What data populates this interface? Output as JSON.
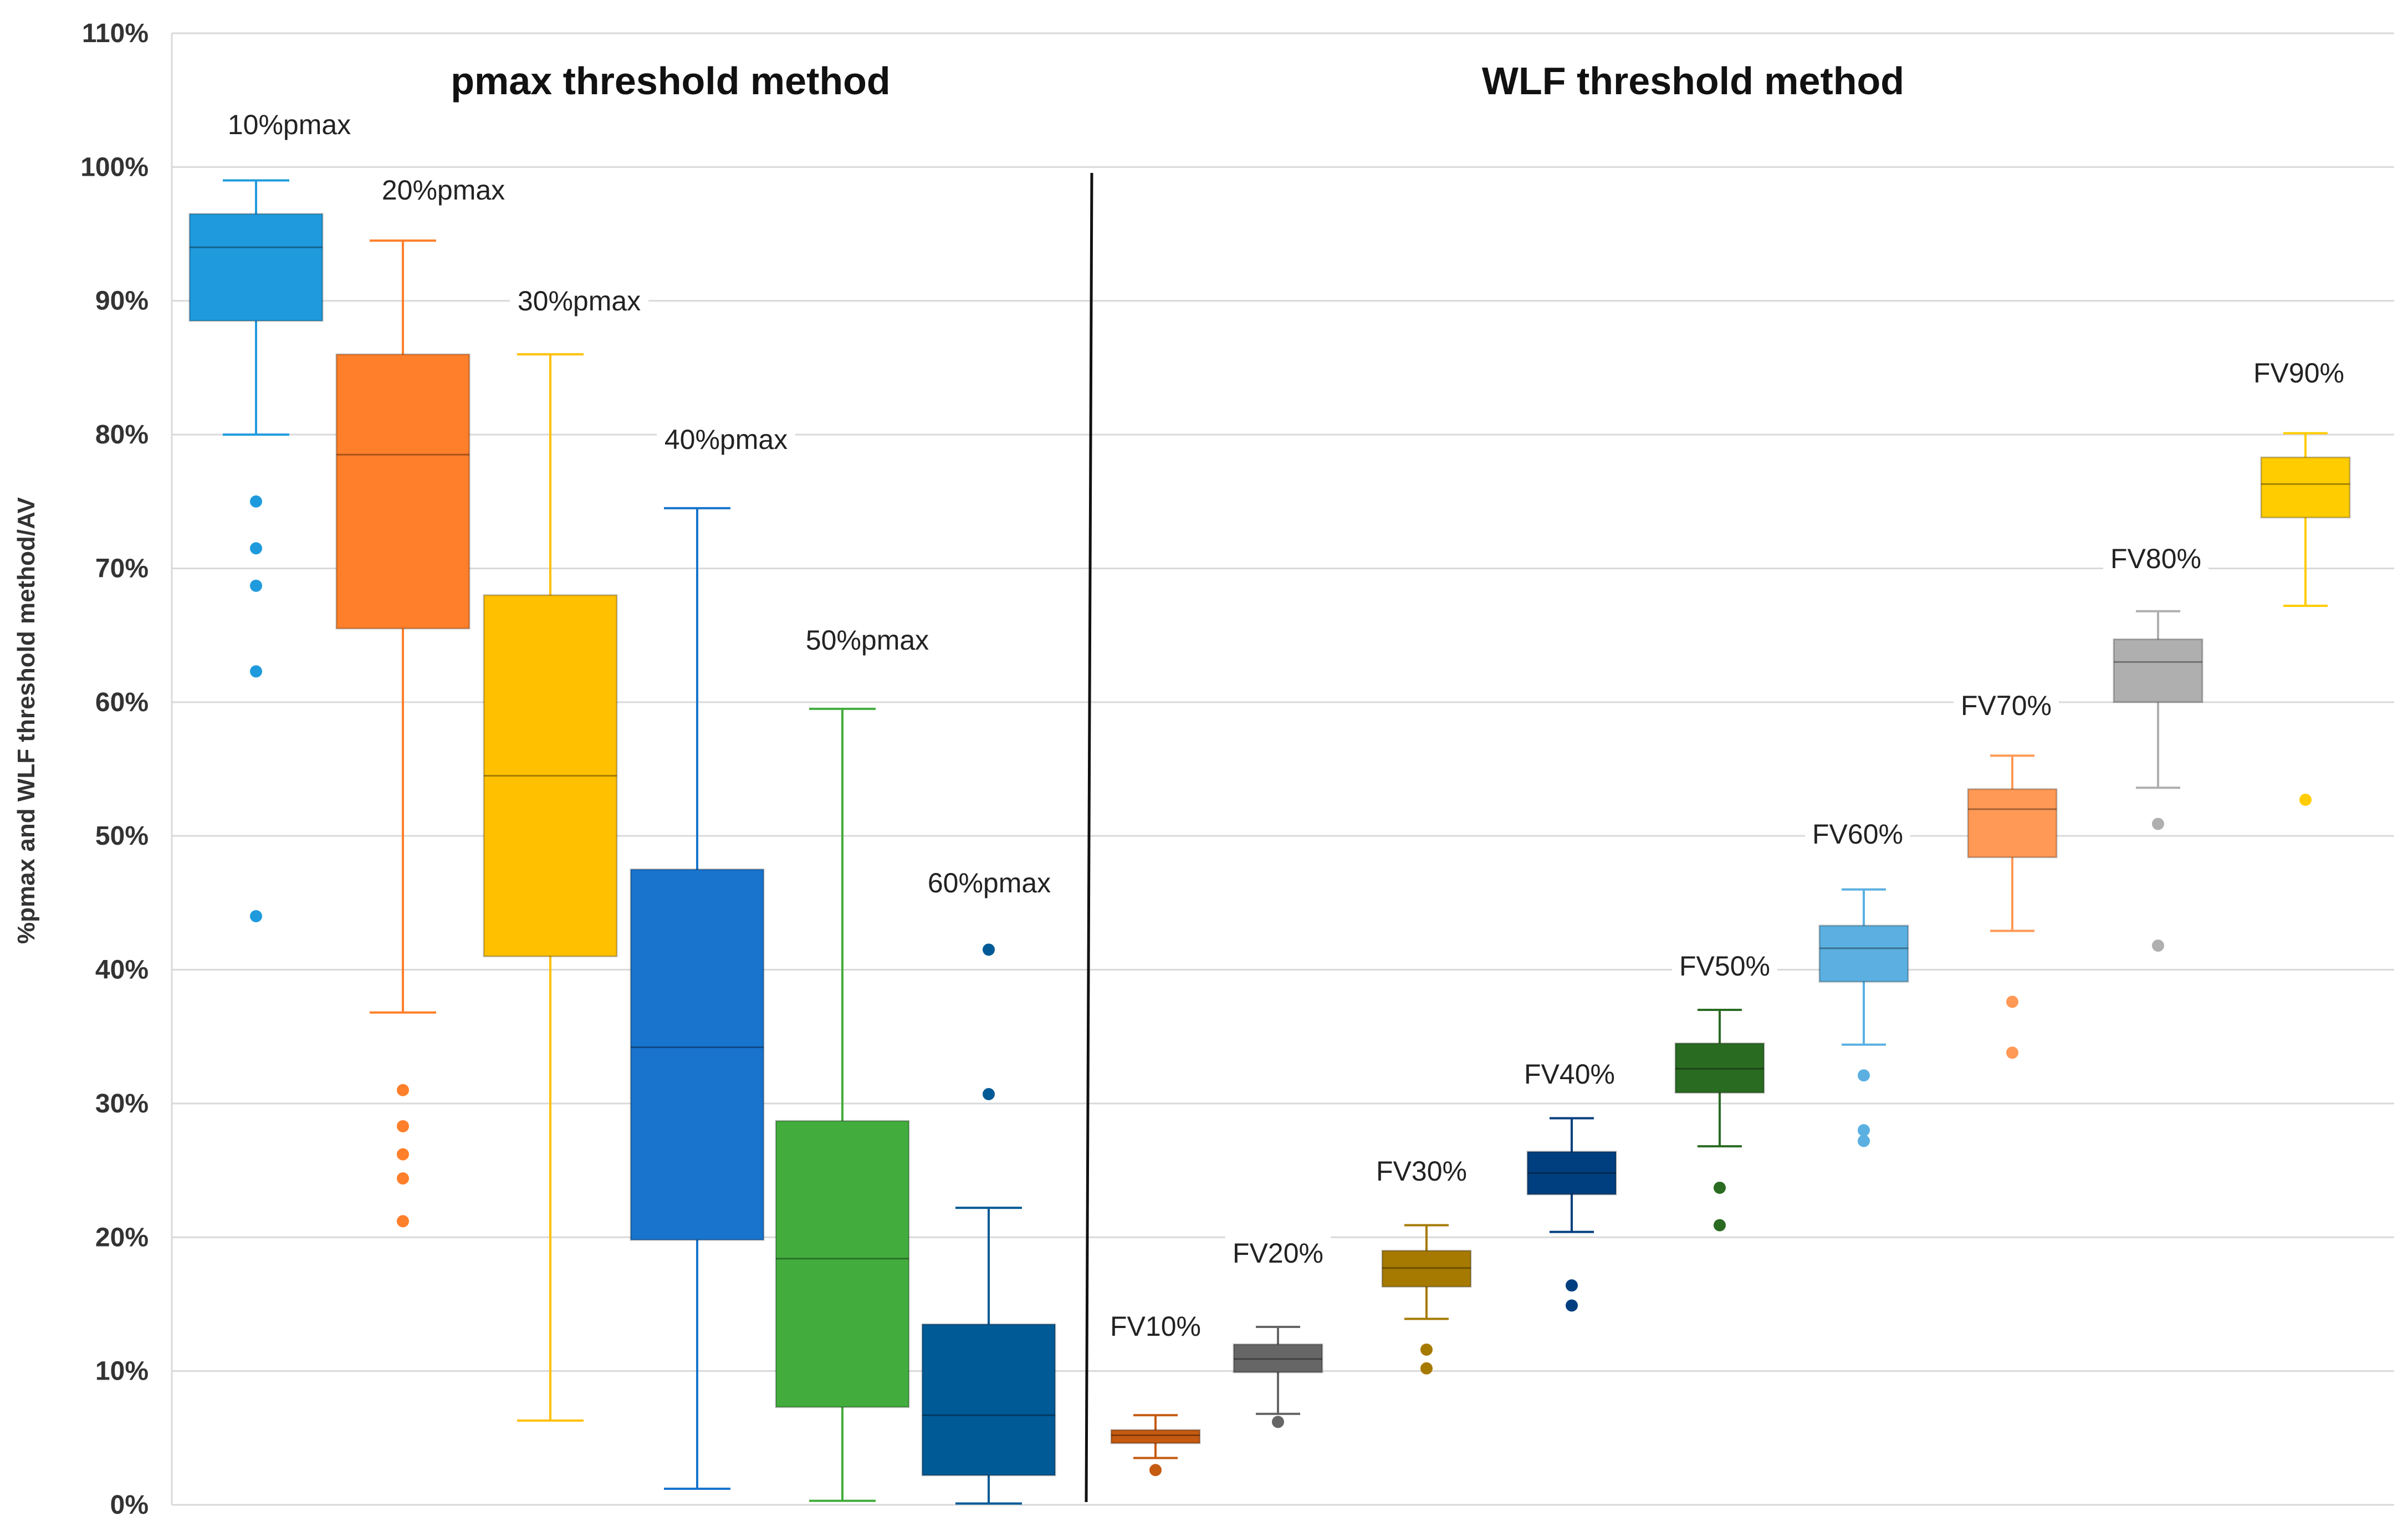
{
  "chart_data": {
    "type": "box",
    "ylabel": "%pmax and WLF threshold method/AV",
    "ylim": [
      0,
      110
    ],
    "yticks": [
      "0%",
      "10%",
      "20%",
      "30%",
      "40%",
      "50%",
      "60%",
      "70%",
      "80%",
      "90%",
      "100%",
      "110%"
    ],
    "grid": true,
    "sections": [
      {
        "title": "pmax threshold method"
      },
      {
        "title": "WLF threshold method"
      }
    ],
    "series": [
      {
        "name": "10%pmax",
        "color": "#1F9BDD",
        "min": 80,
        "q1": 88.5,
        "median": 94,
        "q3": 96.5,
        "max": 99,
        "outliers": [
          75,
          71.5,
          68.7,
          62.3,
          44
        ]
      },
      {
        "name": "20%pmax",
        "color": "#FF7F2A",
        "min": 36.8,
        "q1": 65.5,
        "median": 78.5,
        "q3": 86,
        "max": 94.5,
        "outliers": [
          31,
          28.3,
          26.2,
          24.4,
          21.2
        ]
      },
      {
        "name": "30%pmax",
        "color": "#FFC000",
        "min": 6.3,
        "q1": 41,
        "median": 54.5,
        "q3": 68,
        "max": 86,
        "outliers": []
      },
      {
        "name": "40%pmax",
        "color": "#1874CD",
        "min": 1.2,
        "q1": 19.8,
        "median": 34.2,
        "q3": 47.5,
        "max": 74.5,
        "outliers": []
      },
      {
        "name": "50%pmax",
        "color": "#42AD3D",
        "min": 0.3,
        "q1": 7.3,
        "median": 18.4,
        "q3": 28.7,
        "max": 59.5,
        "outliers": []
      },
      {
        "name": "60%pmax",
        "color": "#005A96",
        "min": 0.1,
        "q1": 2.2,
        "median": 6.7,
        "q3": 13.5,
        "max": 22.2,
        "outliers": [
          41.5,
          30.7
        ]
      },
      {
        "name": "FV10%",
        "color": "#C55A11",
        "min": 3.5,
        "q1": 4.6,
        "median": 5.2,
        "q3": 5.6,
        "max": 6.7,
        "outliers": [
          2.6
        ]
      },
      {
        "name": "FV20%",
        "color": "#666666",
        "min": 6.8,
        "q1": 9.9,
        "median": 10.9,
        "q3": 12,
        "max": 13.3,
        "outliers": [
          6.2
        ]
      },
      {
        "name": "FV30%",
        "color": "#A67A00",
        "min": 13.9,
        "q1": 16.3,
        "median": 17.7,
        "q3": 19,
        "max": 20.9,
        "outliers": [
          11.6,
          10.2
        ]
      },
      {
        "name": "FV40%",
        "color": "#003F7F",
        "min": 20.4,
        "q1": 23.2,
        "median": 24.8,
        "q3": 26.4,
        "max": 28.9,
        "outliers": [
          16.4,
          14.9
        ]
      },
      {
        "name": "FV50%",
        "color": "#2A6B22",
        "min": 26.8,
        "q1": 30.8,
        "median": 32.6,
        "q3": 34.5,
        "max": 37,
        "outliers": [
          23.7,
          20.9
        ]
      },
      {
        "name": "FV60%",
        "color": "#5BB0E1",
        "min": 34.4,
        "q1": 39.1,
        "median": 41.6,
        "q3": 43.3,
        "max": 46,
        "outliers": [
          32.1,
          28,
          27.2
        ]
      },
      {
        "name": "FV70%",
        "color": "#FF9955",
        "min": 42.9,
        "q1": 48.4,
        "median": 52,
        "q3": 53.5,
        "max": 56,
        "outliers": [
          37.6,
          33.8
        ]
      },
      {
        "name": "FV80%",
        "color": "#AFAFAF",
        "min": 53.6,
        "q1": 60,
        "median": 63,
        "q3": 64.7,
        "max": 66.8,
        "outliers": [
          50.9,
          41.8
        ]
      },
      {
        "name": "FV90%",
        "color": "#FFCC00",
        "min": 67.2,
        "q1": 73.8,
        "median": 76.3,
        "q3": 78.3,
        "max": 80.1,
        "outliers": [
          52.7
        ]
      }
    ]
  }
}
